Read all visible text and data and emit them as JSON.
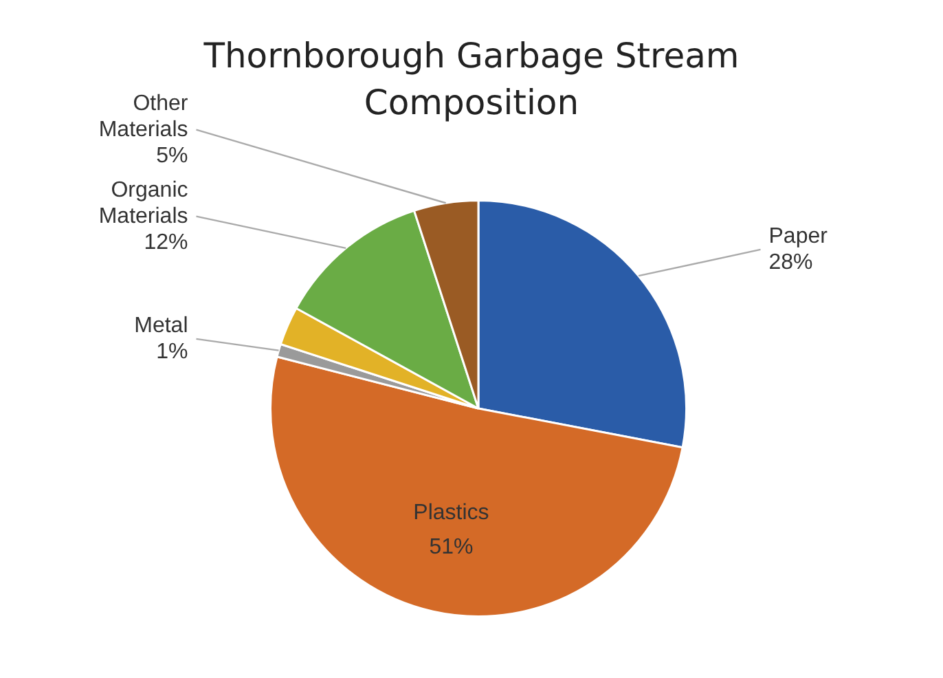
{
  "chart_data": {
    "type": "pie",
    "title": "Thornborough Garbage Stream Composition",
    "categories": [
      "Paper",
      "Plastics",
      "Metal",
      null,
      "Organic Materials",
      "Other Materials"
    ],
    "values": [
      28,
      51,
      1,
      3,
      12,
      5
    ],
    "value_labels": [
      "28%",
      "51%",
      "1%",
      null,
      "12%",
      "5%"
    ],
    "colors": [
      "#2a5ca8",
      "#d46a27",
      "#9a9a9a",
      "#e2b227",
      "#6aac45",
      "#9a5b24"
    ],
    "legend": false
  }
}
